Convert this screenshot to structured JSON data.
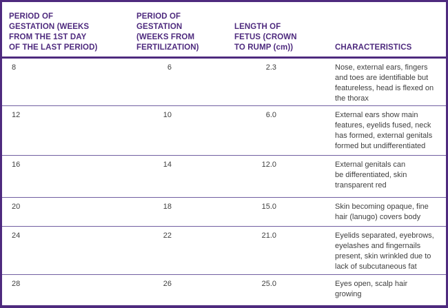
{
  "colors": {
    "accent_purple": "#4e2a7e",
    "row_separator": "#6f5da0",
    "body_text": "#3e3e3e",
    "background": "#ffffff"
  },
  "table": {
    "header": [
      "PERIOD OF\nGESTATION (WEEKS\nFROM THE 1ST DAY\nOF THE LAST PERIOD)",
      "PERIOD OF\nGESTATION\n(WEEKS FROM\nFERTILIZATION)",
      "LENGTH OF\nFETUS (CROWN\nTO RUMP (cm))",
      "CHARACTERISTICS"
    ],
    "rows": [
      {
        "weeks_lmp": "8",
        "weeks_fertilization": "6",
        "length_cm": "2.3",
        "characteristics": "Nose, external ears, fingers\nand toes are identifiable but\nfeatureless, head is flexed on\nthe thorax"
      },
      {
        "weeks_lmp": "12",
        "weeks_fertilization": "10",
        "length_cm": "6.0",
        "characteristics": "External ears show main\nfeatures, eyelids fused, neck\nhas formed, external genitals\nformed but undifferentiated"
      },
      {
        "weeks_lmp": "16",
        "weeks_fertilization": "14",
        "length_cm": "12.0",
        "characteristics": "External genitals can\nbe differentiated, skin\ntransparent red"
      },
      {
        "weeks_lmp": "20",
        "weeks_fertilization": "18",
        "length_cm": "15.0",
        "characteristics": "Skin becoming opaque, fine\nhair (lanugo) covers body"
      },
      {
        "weeks_lmp": "24",
        "weeks_fertilization": "22",
        "length_cm": "21.0",
        "characteristics": "Eyelids separated, eyebrows,\neyelashes and fingernails\npresent, skin wrinkled due to\nlack of subcutaneous fat"
      },
      {
        "weeks_lmp": "28",
        "weeks_fertilization": "26",
        "length_cm": "25.0",
        "characteristics": "Eyes open, scalp hair\ngrowing"
      }
    ]
  }
}
